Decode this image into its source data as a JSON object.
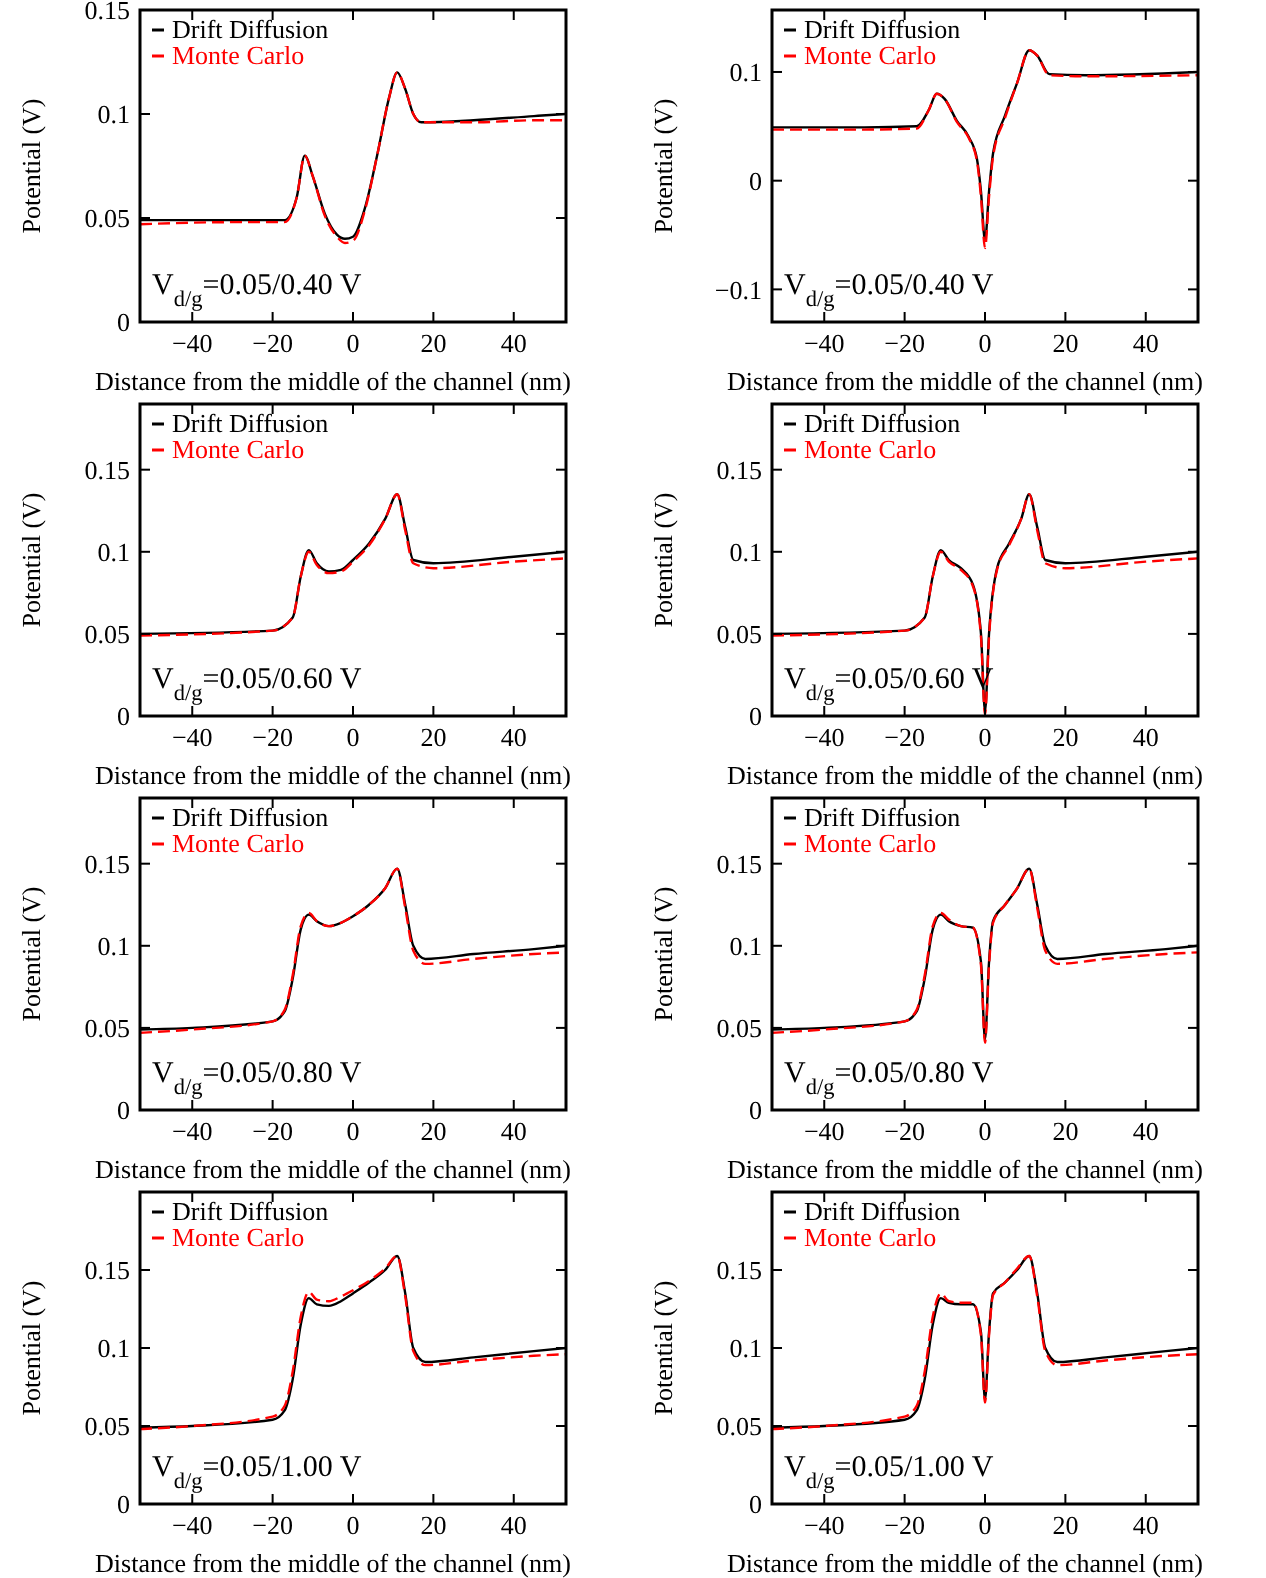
{
  "chart_data": [
    {
      "type": "line",
      "xlabel": "Distance from the middle of the channel (nm)",
      "ylabel": "Potential (V)",
      "annotations": [
        "V$_{d/g}$=0.05/0.40 V"
      ],
      "xlim": [
        -53,
        53
      ],
      "xticks": [
        -40,
        -20,
        0,
        20,
        40
      ],
      "ylim": [
        0,
        0.15
      ],
      "yticks": [
        0,
        0.05,
        0.1,
        0.15
      ],
      "legend": "top left",
      "x": [
        -53,
        -30,
        -17,
        -14,
        -12,
        -10,
        -7,
        -4,
        -2,
        0,
        3,
        6,
        9,
        11,
        13,
        15,
        17,
        30,
        45,
        53
      ],
      "series": [
        {
          "name": "Drift Diffusion",
          "color": "#000000",
          "line_style": "solid",
          "values": [
            0.049,
            0.049,
            0.049,
            0.06,
            0.08,
            0.07,
            0.052,
            0.042,
            0.04,
            0.041,
            0.055,
            0.08,
            0.108,
            0.12,
            0.112,
            0.1,
            0.096,
            0.097,
            0.099,
            0.1
          ]
        },
        {
          "name": "Monte Carlo",
          "color": "#ff0000",
          "line_style": "dashed",
          "values": [
            0.047,
            0.048,
            0.048,
            0.06,
            0.08,
            0.07,
            0.051,
            0.041,
            0.038,
            0.039,
            0.054,
            0.08,
            0.108,
            0.12,
            0.112,
            0.1,
            0.096,
            0.096,
            0.097,
            0.097
          ]
        }
      ]
    },
    {
      "type": "line",
      "xlabel": "Distance from the middle of the channel (nm)",
      "ylabel": "Potential (V)",
      "annotations": [
        "V$_{d/g}$=0.05/0.40 V"
      ],
      "xlim": [
        -53,
        53
      ],
      "xticks": [
        -40,
        -20,
        0,
        20,
        40
      ],
      "ylim": [
        -0.13,
        0.157
      ],
      "yticks": [
        -0.1,
        0,
        0.1
      ],
      "legend": "top left",
      "x": [
        -53,
        -30,
        -17,
        -14,
        -12,
        -10,
        -7,
        -4,
        -2,
        -1,
        0,
        1,
        2,
        5,
        8,
        11,
        13,
        16,
        25,
        53
      ],
      "series": [
        {
          "name": "Drift Diffusion",
          "color": "#000000",
          "line_style": "solid",
          "values": [
            0.049,
            0.049,
            0.05,
            0.065,
            0.08,
            0.075,
            0.055,
            0.04,
            0.02,
            -0.01,
            -0.055,
            -0.01,
            0.025,
            0.06,
            0.09,
            0.12,
            0.115,
            0.098,
            0.097,
            0.1
          ]
        },
        {
          "name": "Monte Carlo",
          "color": "#ff0000",
          "line_style": "dashed",
          "values": [
            0.047,
            0.047,
            0.048,
            0.065,
            0.08,
            0.075,
            0.054,
            0.039,
            0.018,
            -0.015,
            -0.062,
            -0.015,
            0.022,
            0.058,
            0.09,
            0.12,
            0.115,
            0.097,
            0.096,
            0.097
          ]
        }
      ]
    },
    {
      "type": "line",
      "xlabel": "Distance from the middle of the channel (nm)",
      "ylabel": "Potential (V)",
      "annotations": [
        "V$_{d/g}$=0.05/0.60 V"
      ],
      "xlim": [
        -53,
        53
      ],
      "xticks": [
        -40,
        -20,
        0,
        20,
        40
      ],
      "ylim": [
        0,
        0.19
      ],
      "yticks": [
        0,
        0.05,
        0.1,
        0.15
      ],
      "legend": "top left",
      "x": [
        -53,
        -20,
        -15,
        -13,
        -11,
        -9,
        -6,
        -3,
        0,
        4,
        8,
        11,
        13,
        15,
        20,
        40,
        53
      ],
      "series": [
        {
          "name": "Drift Diffusion",
          "color": "#000000",
          "line_style": "solid",
          "values": [
            0.05,
            0.052,
            0.06,
            0.085,
            0.101,
            0.093,
            0.088,
            0.089,
            0.095,
            0.105,
            0.12,
            0.135,
            0.115,
            0.095,
            0.093,
            0.097,
            0.1
          ]
        },
        {
          "name": "Monte Carlo",
          "color": "#ff0000",
          "line_style": "dashed",
          "values": [
            0.049,
            0.052,
            0.06,
            0.085,
            0.1,
            0.092,
            0.087,
            0.088,
            0.094,
            0.104,
            0.12,
            0.135,
            0.113,
            0.093,
            0.09,
            0.094,
            0.096
          ]
        }
      ]
    },
    {
      "type": "line",
      "xlabel": "Distance from the middle of the channel (nm)",
      "ylabel": "Potential (V)",
      "annotations": [
        "V$_{d/g}$=0.05/0.60 V"
      ],
      "xlim": [
        -53,
        53
      ],
      "xticks": [
        -40,
        -20,
        0,
        20,
        40
      ],
      "ylim": [
        0,
        0.19
      ],
      "yticks": [
        0,
        0.05,
        0.1,
        0.15
      ],
      "legend": "top left",
      "x": [
        -53,
        -20,
        -15,
        -13,
        -11,
        -9,
        -6,
        -3,
        -1,
        0,
        1,
        3,
        6,
        9,
        11,
        13,
        15,
        20,
        40,
        53
      ],
      "series": [
        {
          "name": "Drift Diffusion",
          "color": "#000000",
          "line_style": "solid",
          "values": [
            0.05,
            0.052,
            0.06,
            0.085,
            0.101,
            0.095,
            0.09,
            0.08,
            0.05,
            0.003,
            0.05,
            0.09,
            0.105,
            0.12,
            0.135,
            0.115,
            0.095,
            0.093,
            0.097,
            0.1
          ]
        },
        {
          "name": "Monte Carlo",
          "color": "#ff0000",
          "line_style": "dashed",
          "values": [
            0.049,
            0.052,
            0.06,
            0.085,
            0.1,
            0.094,
            0.089,
            0.079,
            0.048,
            0.001,
            0.048,
            0.089,
            0.104,
            0.12,
            0.135,
            0.113,
            0.093,
            0.09,
            0.094,
            0.096
          ]
        }
      ]
    },
    {
      "type": "line",
      "xlabel": "Distance from the middle of the channel (nm)",
      "ylabel": "Potential (V)",
      "annotations": [
        "V$_{d/g}$=0.05/0.80 V"
      ],
      "xlim": [
        -53,
        53
      ],
      "xticks": [
        -40,
        -20,
        0,
        20,
        40
      ],
      "ylim": [
        0,
        0.19
      ],
      "yticks": [
        0,
        0.05,
        0.1,
        0.15
      ],
      "legend": "top left",
      "x": [
        -53,
        -40,
        -20,
        -17,
        -15,
        -13,
        -11,
        -9,
        -6,
        -3,
        0,
        4,
        8,
        11,
        13,
        15,
        18,
        30,
        45,
        53
      ],
      "series": [
        {
          "name": "Drift Diffusion",
          "color": "#000000",
          "line_style": "solid",
          "values": [
            0.049,
            0.05,
            0.054,
            0.06,
            0.08,
            0.11,
            0.119,
            0.115,
            0.112,
            0.114,
            0.118,
            0.125,
            0.135,
            0.147,
            0.125,
            0.1,
            0.092,
            0.095,
            0.098,
            0.1
          ]
        },
        {
          "name": "Monte Carlo",
          "color": "#ff0000",
          "line_style": "dashed",
          "values": [
            0.047,
            0.049,
            0.054,
            0.061,
            0.082,
            0.112,
            0.12,
            0.115,
            0.112,
            0.114,
            0.118,
            0.125,
            0.135,
            0.147,
            0.123,
            0.097,
            0.089,
            0.092,
            0.095,
            0.096
          ]
        }
      ]
    },
    {
      "type": "line",
      "xlabel": "Distance from the middle of the channel (nm)",
      "ylabel": "Potential (V)",
      "annotations": [
        "V$_{d/g}$=0.05/0.80 V"
      ],
      "xlim": [
        -53,
        53
      ],
      "xticks": [
        -40,
        -20,
        0,
        20,
        40
      ],
      "ylim": [
        0,
        0.19
      ],
      "yticks": [
        0,
        0.05,
        0.1,
        0.15
      ],
      "legend": "top left",
      "x": [
        -53,
        -40,
        -20,
        -17,
        -15,
        -13,
        -11,
        -9,
        -6,
        -3,
        -1,
        0,
        1,
        2,
        5,
        8,
        11,
        13,
        15,
        18,
        30,
        45,
        53
      ],
      "series": [
        {
          "name": "Drift Diffusion",
          "color": "#000000",
          "line_style": "solid",
          "values": [
            0.049,
            0.05,
            0.054,
            0.06,
            0.08,
            0.11,
            0.119,
            0.115,
            0.112,
            0.111,
            0.09,
            0.043,
            0.09,
            0.115,
            0.125,
            0.135,
            0.147,
            0.125,
            0.1,
            0.092,
            0.095,
            0.098,
            0.1
          ]
        },
        {
          "name": "Monte Carlo",
          "color": "#ff0000",
          "line_style": "dashed",
          "values": [
            0.047,
            0.049,
            0.054,
            0.061,
            0.082,
            0.112,
            0.12,
            0.116,
            0.112,
            0.111,
            0.088,
            0.041,
            0.088,
            0.114,
            0.125,
            0.135,
            0.147,
            0.123,
            0.097,
            0.089,
            0.092,
            0.095,
            0.096
          ]
        }
      ]
    },
    {
      "type": "line",
      "xlabel": "Distance from the middle of the channel (nm)",
      "ylabel": "Potential (V)",
      "annotations": [
        "V$_{d/g}$=0.05/1.00 V"
      ],
      "xlim": [
        -53,
        53
      ],
      "xticks": [
        -40,
        -20,
        0,
        20,
        40
      ],
      "ylim": [
        0,
        0.2
      ],
      "yticks": [
        0,
        0.05,
        0.1,
        0.15
      ],
      "legend": "top left",
      "x": [
        -53,
        -40,
        -20,
        -17,
        -15,
        -13,
        -11,
        -9,
        -6,
        -3,
        0,
        4,
        8,
        11,
        13,
        15,
        18,
        30,
        45,
        53
      ],
      "series": [
        {
          "name": "Drift Diffusion",
          "color": "#000000",
          "line_style": "solid",
          "values": [
            0.049,
            0.05,
            0.054,
            0.06,
            0.08,
            0.115,
            0.132,
            0.128,
            0.127,
            0.13,
            0.135,
            0.142,
            0.15,
            0.159,
            0.135,
            0.1,
            0.091,
            0.094,
            0.098,
            0.1
          ]
        },
        {
          "name": "Monte Carlo",
          "color": "#ff0000",
          "line_style": "dashed",
          "values": [
            0.048,
            0.05,
            0.056,
            0.063,
            0.085,
            0.12,
            0.136,
            0.131,
            0.13,
            0.133,
            0.137,
            0.143,
            0.151,
            0.159,
            0.133,
            0.098,
            0.089,
            0.092,
            0.095,
            0.096
          ]
        }
      ]
    },
    {
      "type": "line",
      "xlabel": "Distance from the middle of the channel (nm)",
      "ylabel": "Potential (V)",
      "annotations": [
        "V$_{d/g}$=0.05/1.00 V"
      ],
      "xlim": [
        -53,
        53
      ],
      "xticks": [
        -40,
        -20,
        0,
        20,
        40
      ],
      "ylim": [
        0,
        0.2
      ],
      "yticks": [
        0,
        0.05,
        0.1,
        0.15
      ],
      "legend": "top left",
      "x": [
        -53,
        -40,
        -20,
        -17,
        -15,
        -13,
        -11,
        -9,
        -6,
        -3,
        -1,
        0,
        1,
        2,
        5,
        8,
        11,
        13,
        15,
        18,
        30,
        45,
        53
      ],
      "series": [
        {
          "name": "Drift Diffusion",
          "color": "#000000",
          "line_style": "solid",
          "values": [
            0.049,
            0.05,
            0.054,
            0.06,
            0.08,
            0.115,
            0.132,
            0.129,
            0.128,
            0.128,
            0.11,
            0.067,
            0.11,
            0.135,
            0.142,
            0.15,
            0.159,
            0.135,
            0.1,
            0.091,
            0.094,
            0.098,
            0.1
          ]
        },
        {
          "name": "Monte Carlo",
          "color": "#ff0000",
          "line_style": "dashed",
          "values": [
            0.048,
            0.05,
            0.056,
            0.063,
            0.085,
            0.12,
            0.135,
            0.13,
            0.129,
            0.129,
            0.108,
            0.065,
            0.108,
            0.134,
            0.142,
            0.151,
            0.159,
            0.133,
            0.098,
            0.089,
            0.092,
            0.095,
            0.096
          ]
        }
      ]
    }
  ]
}
